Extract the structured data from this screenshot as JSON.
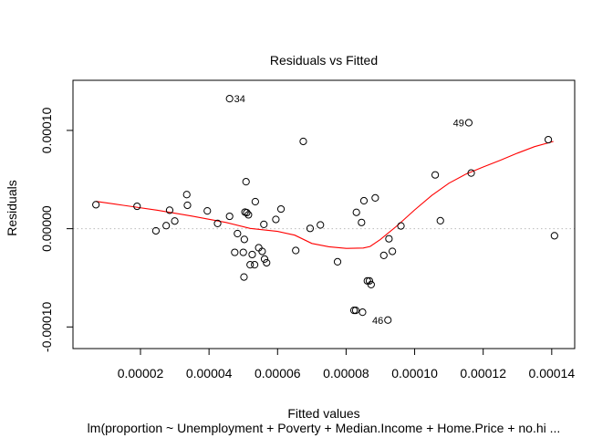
{
  "chart_data": {
    "type": "scatter",
    "title": "Residuals vs Fitted",
    "xlabel": "Fitted values",
    "ylabel": "Residuals",
    "subtitle": "lm(proportion ~ Unemployment + Poverty + Median.Income + Home.Price + no.hi ...",
    "xlim": [
      3e-07,
      0.0001467
    ],
    "ylim": [
      -0.000122,
      0.000151
    ],
    "x_ticks": [
      {
        "value": 2e-05,
        "label": "0.00002"
      },
      {
        "value": 4e-05,
        "label": "0.00004"
      },
      {
        "value": 6e-05,
        "label": "0.00006"
      },
      {
        "value": 8e-05,
        "label": "0.00008"
      },
      {
        "value": 0.0001,
        "label": "0.00010"
      },
      {
        "value": 0.00012,
        "label": "0.00012"
      },
      {
        "value": 0.00014,
        "label": "0.00014"
      }
    ],
    "y_ticks": [
      {
        "value": -0.0001,
        "label": "-0.00010"
      },
      {
        "value": 0.0,
        "label": "0.00000"
      },
      {
        "value": 0.0001,
        "label": "0.00010"
      }
    ],
    "zero_line": 0,
    "grid": false,
    "colors": {
      "points": "#000000",
      "smoother": "#ff0000",
      "zero_line": "#bbbbbb",
      "frame": "#000000"
    },
    "points": [
      {
        "x": 7e-06,
        "y": 2.44e-05
      },
      {
        "x": 1.9e-05,
        "y": 2.28e-05
      },
      {
        "x": 2.45e-05,
        "y": -2.2e-06
      },
      {
        "x": 2.75e-05,
        "y": 3.1e-06
      },
      {
        "x": 2.85e-05,
        "y": 1.88e-05
      },
      {
        "x": 3e-05,
        "y": 7.8e-06
      },
      {
        "x": 3.35e-05,
        "y": 3.47e-05
      },
      {
        "x": 3.37e-05,
        "y": 2.38e-05
      },
      {
        "x": 3.95e-05,
        "y": 1.81e-05
      },
      {
        "x": 4.25e-05,
        "y": 5.3e-06
      },
      {
        "x": 4.6e-05,
        "y": 1.26e-05
      },
      {
        "x": 4.75e-05,
        "y": -2.41e-05
      },
      {
        "x": 4.83e-05,
        "y": -5e-06
      },
      {
        "x": 5.02e-05,
        "y": -4.92e-05
      },
      {
        "x": 5e-05,
        "y": -2.41e-05
      },
      {
        "x": 5.03e-05,
        "y": -1.09e-05
      },
      {
        "x": 5.05e-05,
        "y": 1.69e-05
      },
      {
        "x": 5.1e-05,
        "y": 1.63e-05
      },
      {
        "x": 5.08e-05,
        "y": 4.78e-05
      },
      {
        "x": 5.15e-05,
        "y": 1.41e-05
      },
      {
        "x": 5.2e-05,
        "y": -3.67e-05
      },
      {
        "x": 5.26e-05,
        "y": -2.63e-05
      },
      {
        "x": 5.33e-05,
        "y": -3.67e-05
      },
      {
        "x": 5.35e-05,
        "y": 2.75e-05
      },
      {
        "x": 5.45e-05,
        "y": -1.94e-05
      },
      {
        "x": 5.55e-05,
        "y": -2.31e-05
      },
      {
        "x": 5.62e-05,
        "y": -3.09e-05
      },
      {
        "x": 5.68e-05,
        "y": -3.47e-05
      },
      {
        "x": 5.6e-05,
        "y": 4.4e-06
      },
      {
        "x": 5.95e-05,
        "y": 9.4e-06
      },
      {
        "x": 6.1e-05,
        "y": 2e-05
      },
      {
        "x": 6.53e-05,
        "y": -2.22e-05
      },
      {
        "x": 6.75e-05,
        "y": 8.88e-05
      },
      {
        "x": 6.95e-05,
        "y": 3e-07
      },
      {
        "x": 7.25e-05,
        "y": 3.8e-06
      },
      {
        "x": 7.75e-05,
        "y": -3.37e-05
      },
      {
        "x": 8.23e-05,
        "y": -8.31e-05
      },
      {
        "x": 8.28e-05,
        "y": -8.31e-05
      },
      {
        "x": 8.3e-05,
        "y": 1.66e-05
      },
      {
        "x": 8.45e-05,
        "y": 6.3e-06
      },
      {
        "x": 8.52e-05,
        "y": 2.84e-05
      },
      {
        "x": 8.48e-05,
        "y": -8.5e-05
      },
      {
        "x": 8.62e-05,
        "y": -5.31e-05
      },
      {
        "x": 8.68e-05,
        "y": -5.31e-05
      },
      {
        "x": 8.73e-05,
        "y": -5.69e-05
      },
      {
        "x": 8.85e-05,
        "y": 3.13e-05
      },
      {
        "x": 9.1e-05,
        "y": -2.72e-05
      },
      {
        "x": 9.25e-05,
        "y": -1.03e-05
      },
      {
        "x": 9.35e-05,
        "y": -2.31e-05
      },
      {
        "x": 9.6e-05,
        "y": 2.8e-06
      },
      {
        "x": 9.22e-05,
        "y": -9.3e-05
      },
      {
        "x": 0.000106,
        "y": 5.47e-05
      },
      {
        "x": 0.0001075,
        "y": 8.1e-06
      },
      {
        "x": 0.0001165,
        "y": 5.66e-05
      },
      {
        "x": 0.0001158,
        "y": 0.0001078
      },
      {
        "x": 0.000139,
        "y": 9.06e-05
      },
      {
        "x": 0.0001408,
        "y": -7.2e-06
      },
      {
        "x": 4.6e-05,
        "y": 0.0001323
      }
    ],
    "smoother": [
      {
        "x": 7e-06,
        "y": 2.78e-05
      },
      {
        "x": 1.5e-05,
        "y": 2.38e-05
      },
      {
        "x": 2.5e-05,
        "y": 1.88e-05
      },
      {
        "x": 3.5e-05,
        "y": 1.28e-05
      },
      {
        "x": 4.5e-05,
        "y": 6.3e-06
      },
      {
        "x": 5.2e-05,
        "y": 3e-07
      },
      {
        "x": 6e-05,
        "y": -2.8e-06
      },
      {
        "x": 6.5e-05,
        "y": -6.6e-06
      },
      {
        "x": 7e-05,
        "y": -1.5e-05
      },
      {
        "x": 7.5e-05,
        "y": -1.84e-05
      },
      {
        "x": 8e-05,
        "y": -2e-05
      },
      {
        "x": 8.5e-05,
        "y": -1.97e-05
      },
      {
        "x": 8.7e-05,
        "y": -1.81e-05
      },
      {
        "x": 9e-05,
        "y": -1.09e-05
      },
      {
        "x": 9.5e-05,
        "y": 3.4e-06
      },
      {
        "x": 0.0001,
        "y": 1.91e-05
      },
      {
        "x": 0.000105,
        "y": 3.38e-05
      },
      {
        "x": 0.00011,
        "y": 4.63e-05
      },
      {
        "x": 0.000115,
        "y": 5.56e-05
      },
      {
        "x": 0.00012,
        "y": 6.28e-05
      },
      {
        "x": 0.000125,
        "y": 6.97e-05
      },
      {
        "x": 0.00013,
        "y": 7.69e-05
      },
      {
        "x": 0.000135,
        "y": 8.35e-05
      },
      {
        "x": 0.0001405,
        "y": 8.88e-05
      }
    ],
    "annotations": [
      {
        "label": "34",
        "x": 4.6e-05,
        "y": 0.0001323,
        "side": "right"
      },
      {
        "label": "49",
        "x": 0.0001158,
        "y": 0.0001078,
        "side": "left"
      },
      {
        "label": "46",
        "x": 9.22e-05,
        "y": -9.3e-05,
        "side": "left"
      }
    ]
  }
}
